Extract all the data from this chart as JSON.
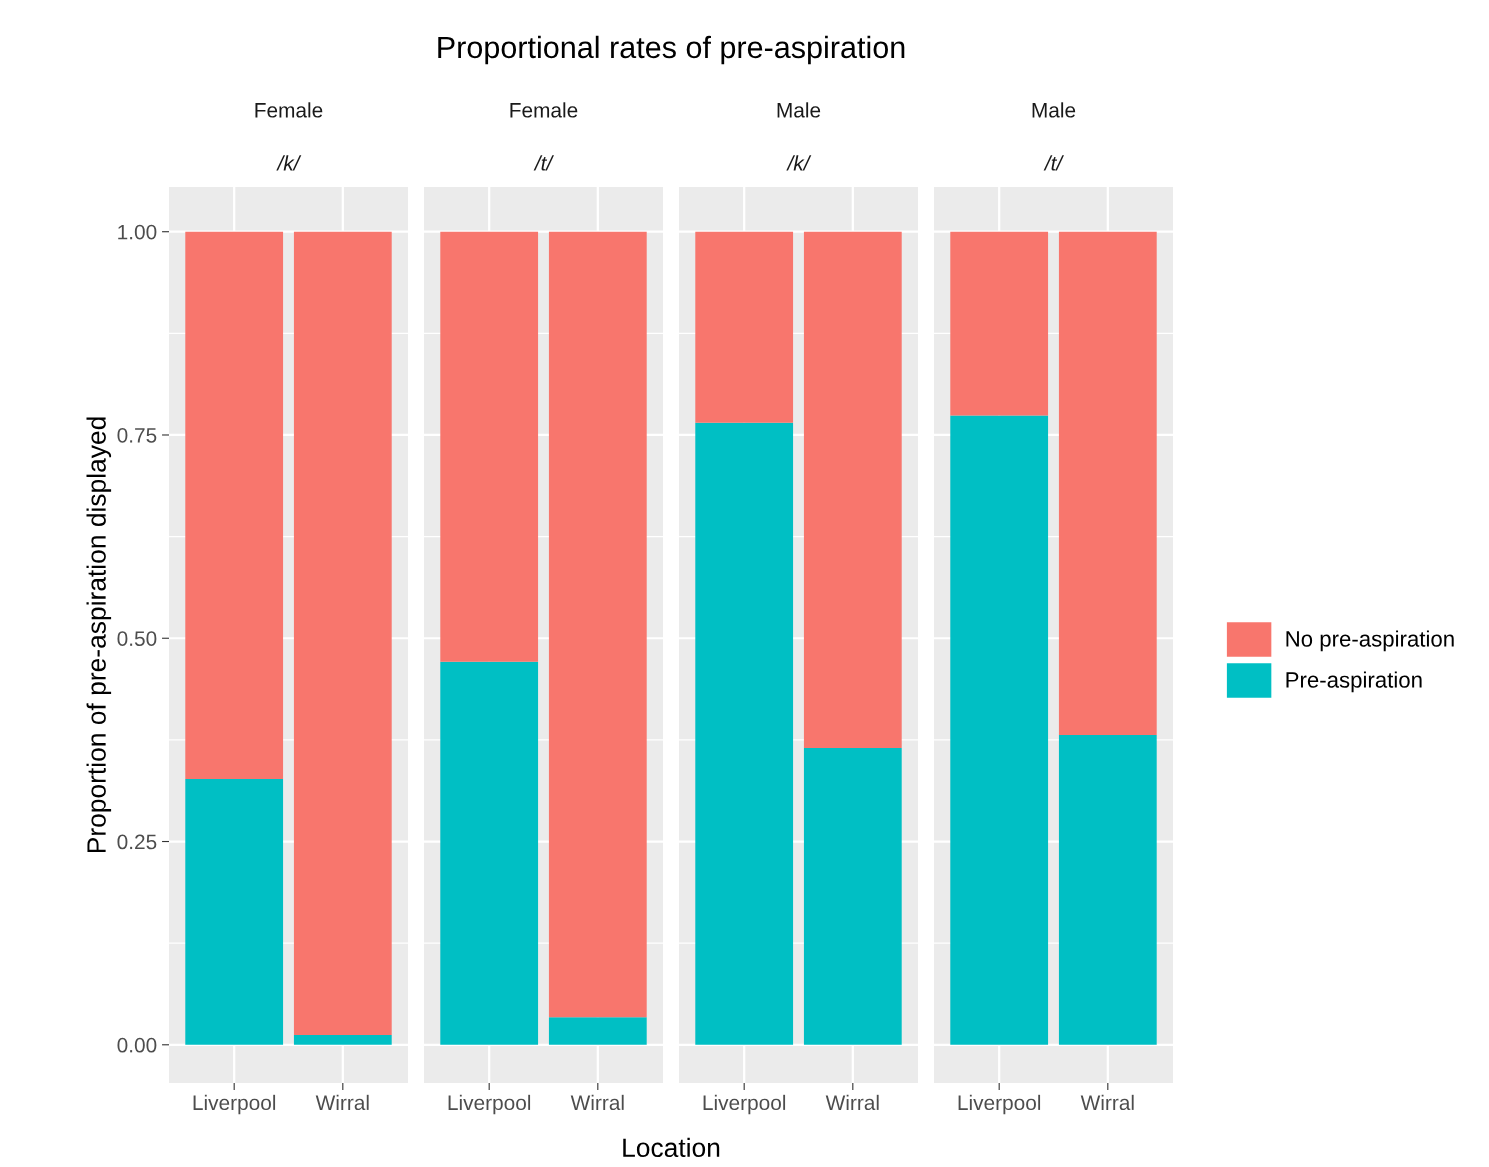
{
  "chart_data": [
    {
      "type": "bar",
      "stacked": true,
      "title": "Female",
      "subtitle": "/k/",
      "annotations": [
        "Proportional rates of pre-aspiration"
      ],
      "ylabel": "Proportion of pre-aspiration displayed",
      "categories": [
        "Liverpool",
        "Wirral"
      ],
      "series": [
        {
          "name": "Pre-aspiration",
          "color": "#00bfc4",
          "values": [
            0.327,
            0.012
          ]
        },
        {
          "name": "No pre-aspiration",
          "color": "#f8766d",
          "values": [
            0.673,
            0.988
          ]
        }
      ],
      "ylim": [
        -0.047,
        1.055
      ],
      "yticks": [
        {
          "value": 0,
          "label": "0.00"
        },
        {
          "value": 0.25,
          "label": "0.25"
        },
        {
          "value": 0.5,
          "label": "0.50"
        },
        {
          "value": 0.75,
          "label": "0.75"
        },
        {
          "value": 1,
          "label": "1.00"
        }
      ],
      "grid": true,
      "legend": "right"
    },
    {
      "type": "bar",
      "stacked": true,
      "title": "Female",
      "subtitle": "/t/",
      "xlabel": "Location",
      "categories": [
        "Liverpool",
        "Wirral"
      ],
      "series": [
        {
          "color": "#00bfc4",
          "values": [
            0.471,
            0.034
          ]
        },
        {
          "color": "#f8766d",
          "values": [
            0.529,
            0.966
          ]
        }
      ],
      "ylim": [
        -0.047,
        1.055
      ],
      "yticks": [
        {
          "value": 0,
          "label": null
        },
        {
          "value": 0.25,
          "label": null
        },
        {
          "value": 0.5,
          "label": null
        },
        {
          "value": 0.75,
          "label": null
        },
        {
          "value": 1,
          "label": null
        }
      ],
      "grid": true,
      "tick_labels": "x"
    },
    {
      "type": "bar",
      "stacked": true,
      "title": "Male",
      "subtitle": "/k/",
      "categories": [
        "Liverpool",
        "Wirral"
      ],
      "series": [
        {
          "color": "#00bfc4",
          "values": [
            0.765,
            0.365
          ]
        },
        {
          "color": "#f8766d",
          "values": [
            0.235,
            0.635
          ]
        }
      ],
      "ylim": [
        -0.047,
        1.055
      ],
      "yticks": [
        {
          "value": 0,
          "label": null
        },
        {
          "value": 0.25,
          "label": null
        },
        {
          "value": 0.5,
          "label": null
        },
        {
          "value": 0.75,
          "label": null
        },
        {
          "value": 1,
          "label": null
        }
      ],
      "grid": true,
      "tick_labels": "x"
    },
    {
      "type": "bar",
      "stacked": true,
      "title": "Male",
      "subtitle": "/t/",
      "categories": [
        "Liverpool",
        "Wirral"
      ],
      "series": [
        {
          "color": "#00bfc4",
          "values": [
            0.774,
            0.381
          ]
        },
        {
          "color": "#f8766d",
          "values": [
            0.226,
            0.619
          ]
        }
      ],
      "ylim": [
        -0.047,
        1.055
      ],
      "yticks": [
        {
          "value": 0,
          "label": null
        },
        {
          "value": 0.25,
          "label": null
        },
        {
          "value": 0.5,
          "label": null
        },
        {
          "value": 0.75,
          "label": null
        },
        {
          "value": 1,
          "label": null
        }
      ],
      "grid": true,
      "tick_labels": "x"
    }
  ]
}
